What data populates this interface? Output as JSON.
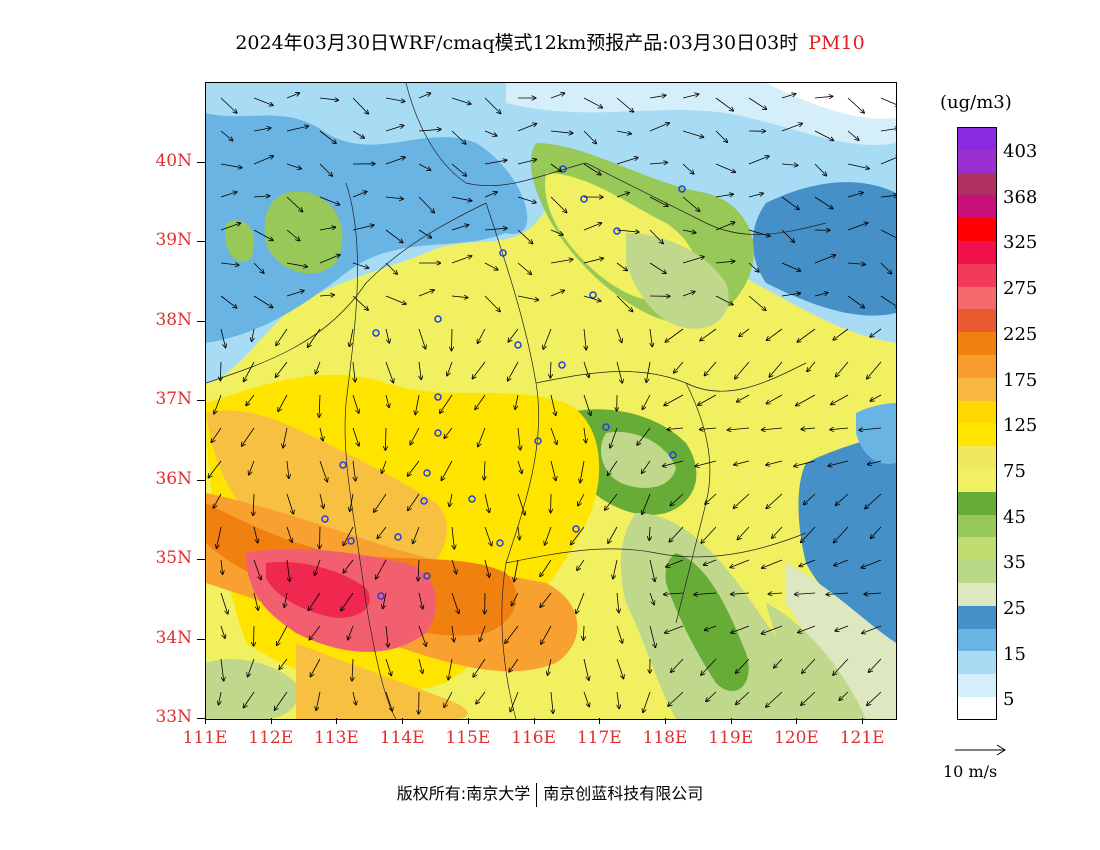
{
  "title": {
    "text": "2024年03月30日WRF/cmaq模式12km预报产品:03月30日03时",
    "pollutant": "PM10"
  },
  "map": {
    "lat_labels": [
      "40N",
      "39N",
      "38N",
      "37N",
      "36N",
      "35N",
      "34N",
      "33N"
    ],
    "lon_labels": [
      "111E",
      "112E",
      "113E",
      "114E",
      "115E",
      "116E",
      "117E",
      "118E",
      "119E",
      "120E",
      "121E"
    ],
    "lon_range": [
      111,
      121.5
    ],
    "lat_range": [
      33,
      41
    ],
    "colors": {
      "white": "#ffffff",
      "pale_blue": "#d4eefa",
      "light_blue": "#a8dcf4",
      "mid_blue": "#6ab4e4",
      "blue": "#4690c8",
      "pale_green": "#dde8c0",
      "light_green": "#c0d88c",
      "green": "#98c858",
      "dark_green": "#68ac38",
      "light_yellow": "#f0f060",
      "yellow": "#ffe400",
      "light_orange": "#f8c040",
      "orange": "#f8a030",
      "dark_orange": "#f08010",
      "red_orange": "#e85830",
      "pink_red": "#f26070",
      "red": "#f02850"
    }
  },
  "legend": {
    "unit": "(ug/m3)",
    "bins": [
      {
        "color": "#8a2be2"
      },
      {
        "color": "#9b30d0"
      },
      {
        "color": "#b03060"
      },
      {
        "color": "#c8107a"
      },
      {
        "color": "#ff0000"
      },
      {
        "color": "#f0104a"
      },
      {
        "color": "#f23a5a"
      },
      {
        "color": "#f56a6a"
      },
      {
        "color": "#e85a30"
      },
      {
        "color": "#f08010"
      },
      {
        "color": "#f89c30"
      },
      {
        "color": "#f8b840"
      },
      {
        "color": "#ffd800"
      },
      {
        "color": "#ffe400"
      },
      {
        "color": "#f0e860"
      },
      {
        "color": "#f0f060"
      },
      {
        "color": "#68ac38"
      },
      {
        "color": "#98c858"
      },
      {
        "color": "#c0dc70"
      },
      {
        "color": "#b8d888"
      },
      {
        "color": "#dde8c0"
      },
      {
        "color": "#4690c8"
      },
      {
        "color": "#6ab4e4"
      },
      {
        "color": "#a8dcf4"
      },
      {
        "color": "#d4eefa"
      },
      {
        "color": "#ffffff"
      }
    ],
    "labels": [
      "403",
      "368",
      "325",
      "275",
      "225",
      "175",
      "125",
      "75",
      "45",
      "35",
      "25",
      "15",
      "5"
    ]
  },
  "wind_reference": {
    "label": "10 m/s"
  },
  "footer": {
    "copyright_label": "版权所有:",
    "owner_1": "南京大学",
    "owner_2": "南京创蓝科技有限公司"
  }
}
